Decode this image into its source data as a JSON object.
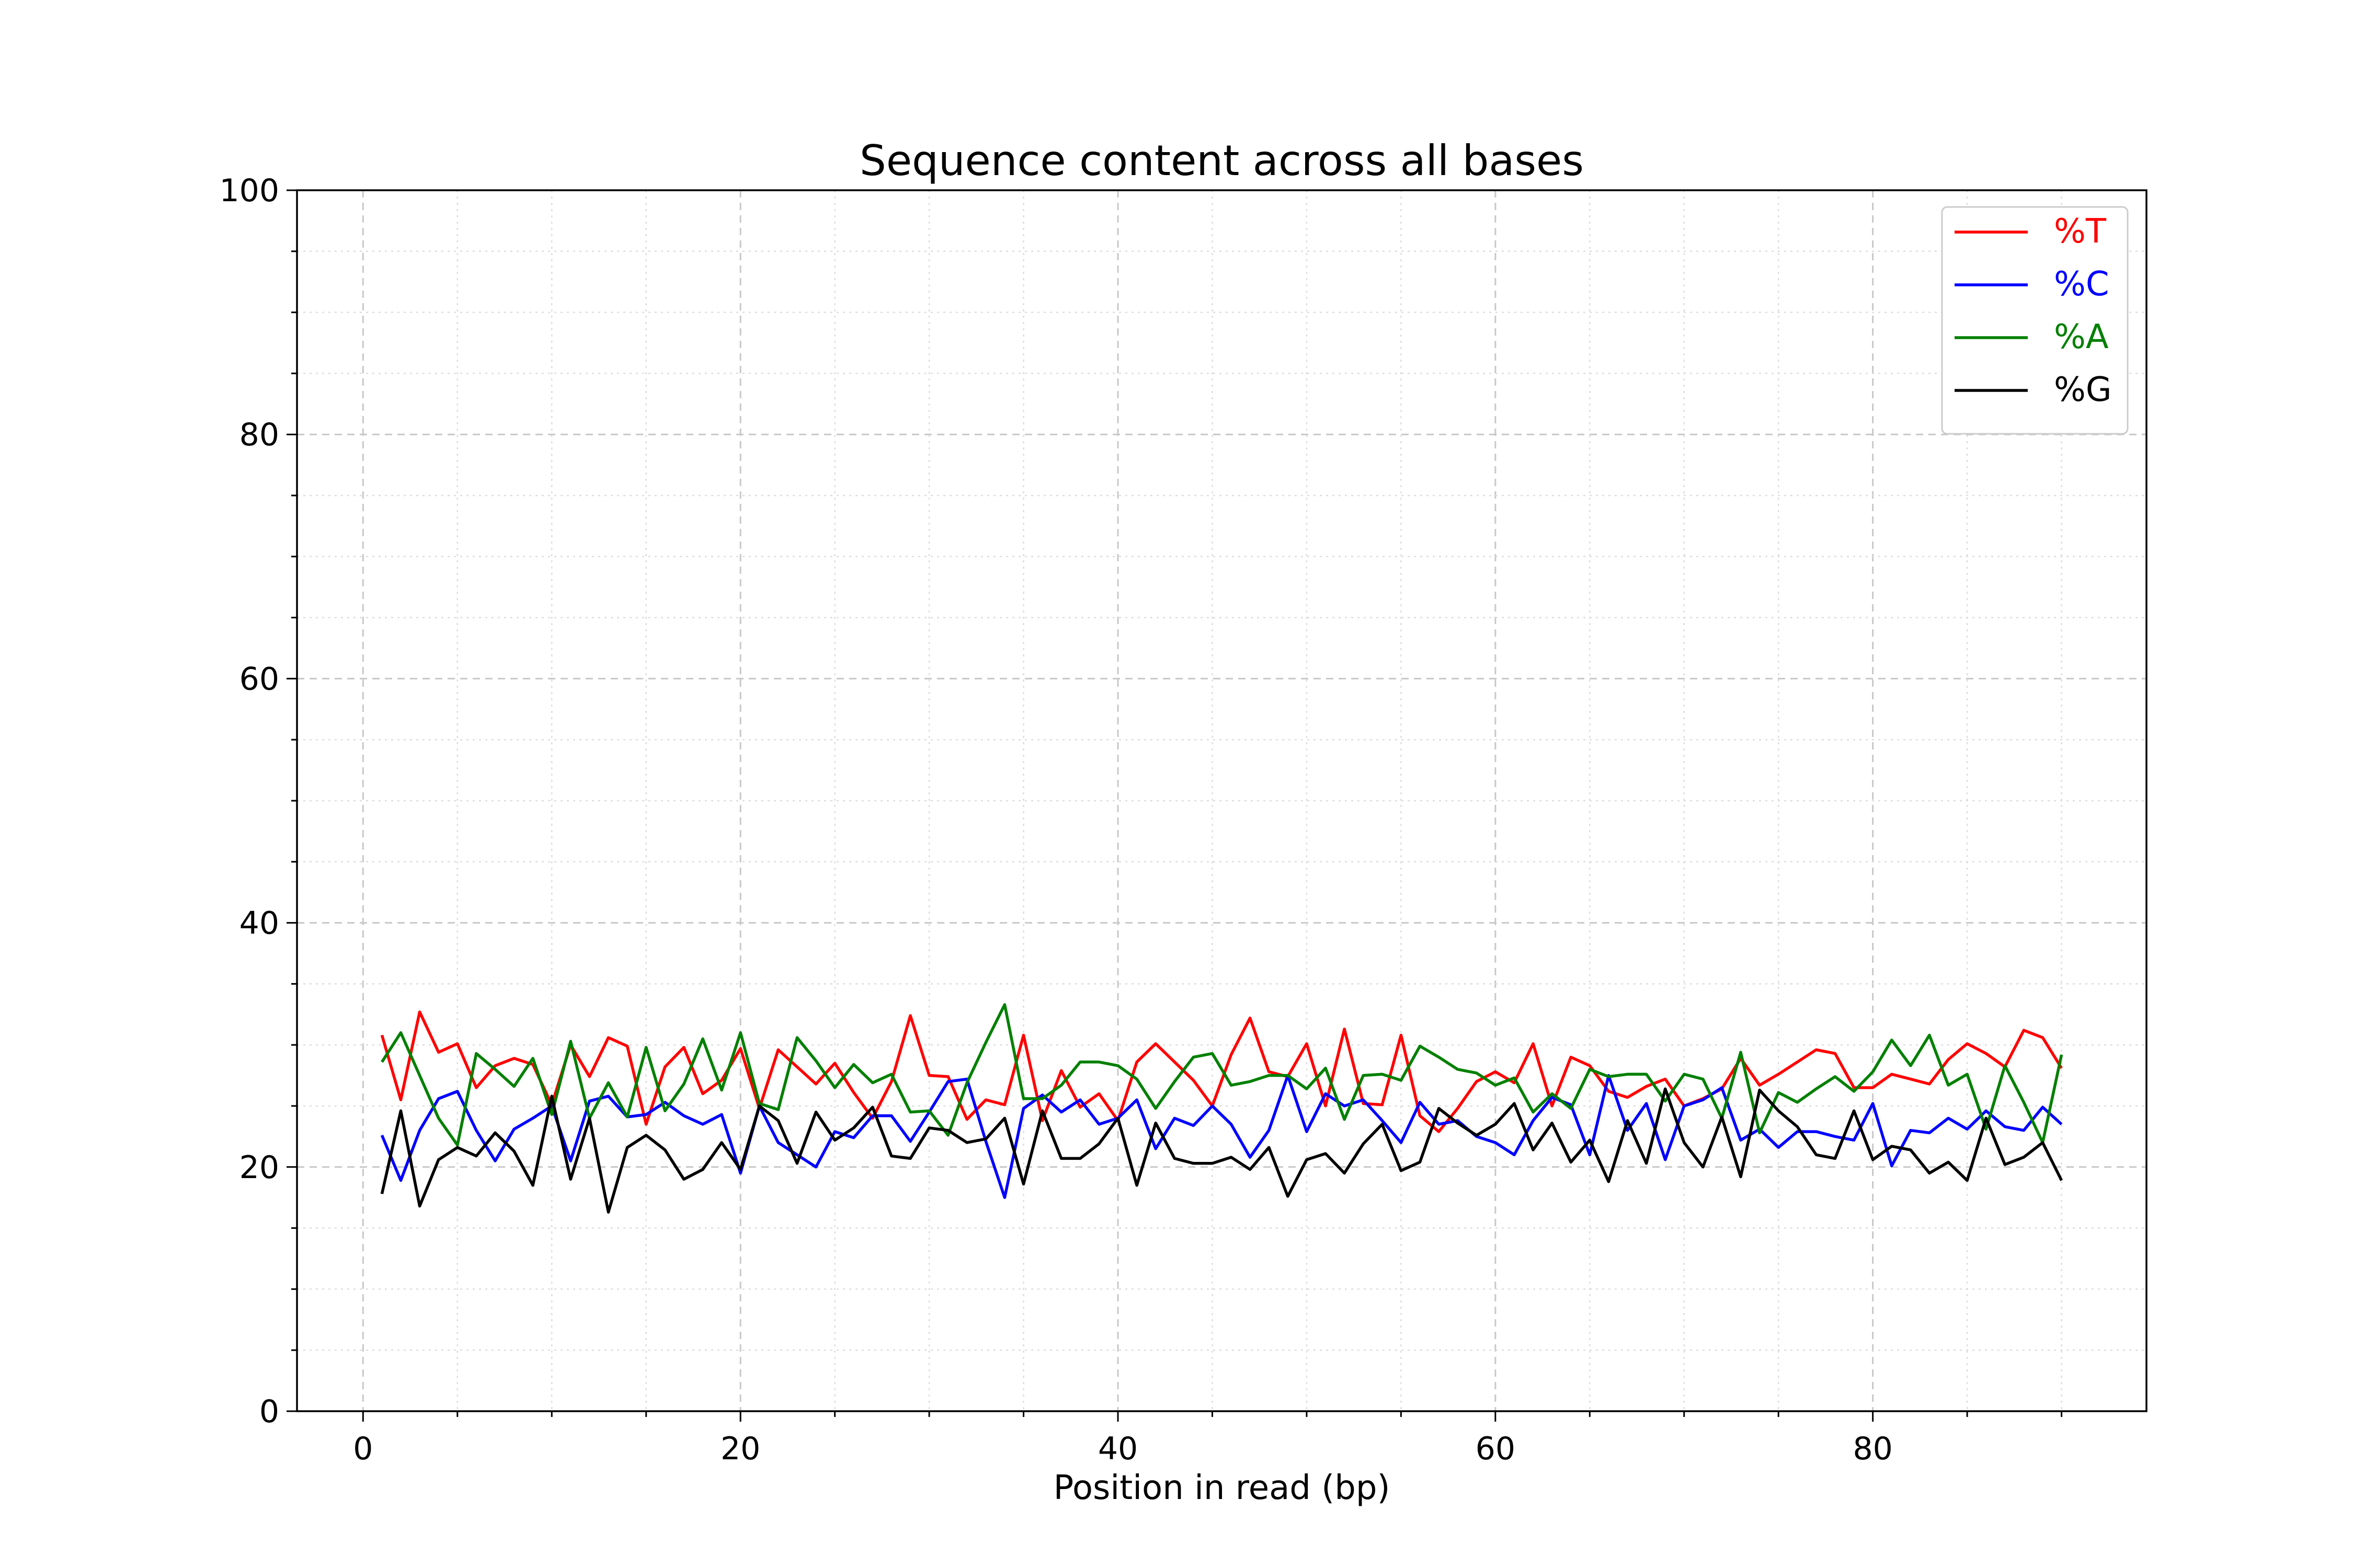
{
  "chart_data": {
    "type": "line",
    "title": "Sequence content across all bases",
    "xlabel": "Position in read (bp)",
    "ylabel": "",
    "xlim": [
      -3.5,
      94.5
    ],
    "ylim": [
      0,
      100
    ],
    "xticks": [
      0,
      20,
      40,
      60,
      80
    ],
    "yticks": [
      0,
      20,
      40,
      60,
      80,
      100
    ],
    "x_minor_step": 5,
    "y_minor_step": 5,
    "grid": true,
    "legend_position": "top-right",
    "x": [
      1,
      2,
      3,
      4,
      5,
      6,
      7,
      8,
      9,
      10,
      11,
      12,
      13,
      14,
      15,
      16,
      17,
      18,
      19,
      20,
      21,
      22,
      23,
      24,
      25,
      26,
      27,
      28,
      29,
      30,
      31,
      32,
      33,
      34,
      35,
      36,
      37,
      38,
      39,
      40,
      41,
      42,
      43,
      44,
      45,
      46,
      47,
      48,
      49,
      50,
      51,
      52,
      53,
      54,
      55,
      56,
      57,
      58,
      59,
      60,
      61,
      62,
      63,
      64,
      65,
      66,
      67,
      68,
      69,
      70,
      71,
      72,
      73,
      74,
      75,
      76,
      77,
      78,
      79,
      80,
      81,
      82,
      83,
      84,
      85,
      86,
      87,
      88,
      89,
      90
    ],
    "series": [
      {
        "name": "%T",
        "color": "#ff0000",
        "values": [
          30.8,
          25.5,
          32.7,
          29.4,
          30.1,
          26.5,
          28.3,
          28.9,
          28.4,
          25.1,
          30.0,
          27.4,
          30.6,
          29.9,
          23.5,
          28.2,
          29.8,
          26.0,
          27.1,
          29.7,
          24.8,
          29.6,
          28.2,
          26.8,
          28.5,
          26.1,
          24.0,
          27.0,
          32.4,
          27.5,
          27.4,
          23.9,
          25.5,
          25.1,
          30.8,
          23.8,
          27.9,
          24.9,
          26.0,
          23.8,
          28.6,
          30.1,
          28.6,
          27.1,
          25.0,
          29.2,
          32.2,
          27.8,
          27.4,
          30.1,
          25.0,
          31.3,
          25.2,
          25.1,
          30.8,
          24.2,
          22.9,
          24.8,
          27.0,
          27.8,
          26.9,
          30.1,
          25.0,
          29.0,
          28.3,
          26.2,
          25.7,
          26.6,
          27.2,
          25.0,
          25.6,
          26.4,
          28.9,
          26.7,
          27.6,
          28.6,
          29.6,
          29.3,
          26.5,
          26.5,
          27.6,
          27.2,
          26.8,
          28.8,
          30.1,
          29.3,
          28.2,
          31.2,
          30.6,
          28.1
        ]
      },
      {
        "name": "%C",
        "color": "#0000ff",
        "values": [
          22.6,
          18.9,
          23.0,
          25.6,
          26.2,
          23.0,
          20.5,
          23.1,
          24.0,
          25.0,
          20.5,
          25.4,
          25.8,
          24.1,
          24.3,
          25.3,
          24.2,
          23.5,
          24.3,
          19.5,
          25.0,
          22.0,
          21.0,
          20.0,
          22.9,
          22.4,
          24.2,
          24.2,
          22.1,
          24.5,
          27.0,
          27.2,
          22.1,
          17.5,
          24.8,
          25.9,
          24.5,
          25.5,
          23.5,
          24.0,
          25.5,
          21.5,
          24.0,
          23.4,
          25.0,
          23.5,
          20.8,
          23.0,
          27.5,
          22.9,
          26.0,
          25.0,
          25.5,
          23.8,
          22.0,
          25.3,
          23.5,
          23.8,
          22.5,
          22.0,
          21.0,
          23.8,
          25.7,
          25.1,
          21.0,
          27.5,
          23.0,
          25.2,
          20.6,
          25.0,
          25.5,
          26.5,
          22.2,
          23.1,
          21.6,
          22.9,
          22.9,
          22.5,
          22.2,
          25.2,
          20.1,
          23.0,
          22.8,
          24.0,
          23.1,
          24.6,
          23.3,
          23.0,
          24.9,
          23.5
        ]
      },
      {
        "name": "%A",
        "color": "#008000",
        "values": [
          28.6,
          31.0,
          27.5,
          24.0,
          21.8,
          29.3,
          28.0,
          26.6,
          28.9,
          24.3,
          30.3,
          24.0,
          26.9,
          24.1,
          29.8,
          24.6,
          26.8,
          30.5,
          26.3,
          31.0,
          25.2,
          24.7,
          30.6,
          28.7,
          26.5,
          28.4,
          26.9,
          27.6,
          24.5,
          24.6,
          22.6,
          26.9,
          30.2,
          33.3,
          25.6,
          25.6,
          26.7,
          28.6,
          28.6,
          28.3,
          27.2,
          24.8,
          27.0,
          29.0,
          29.3,
          26.7,
          27.0,
          27.5,
          27.5,
          26.4,
          28.1,
          23.9,
          27.5,
          27.6,
          27.1,
          29.9,
          29.0,
          28.0,
          27.7,
          26.7,
          27.3,
          24.5,
          26.0,
          24.8,
          28.0,
          27.4,
          27.6,
          27.6,
          25.4,
          27.6,
          27.2,
          24.0,
          29.4,
          22.8,
          26.1,
          25.3,
          26.4,
          27.4,
          26.2,
          27.8,
          30.4,
          28.3,
          30.8,
          26.7,
          27.6,
          23.1,
          28.3,
          25.3,
          22.0,
          29.2
        ]
      },
      {
        "name": "%G",
        "color": "#000000",
        "values": [
          17.8,
          24.6,
          16.8,
          20.6,
          21.6,
          20.9,
          22.8,
          21.3,
          18.5,
          25.8,
          19.0,
          24.0,
          16.3,
          21.6,
          22.6,
          21.4,
          19.0,
          19.8,
          22.0,
          19.8,
          25.0,
          23.8,
          20.3,
          24.5,
          22.2,
          23.2,
          24.9,
          20.9,
          20.7,
          23.2,
          23.0,
          22.0,
          22.3,
          24.0,
          18.6,
          24.6,
          20.7,
          20.7,
          21.9,
          24.0,
          18.5,
          23.6,
          20.7,
          20.3,
          20.3,
          20.8,
          19.8,
          21.6,
          17.6,
          20.6,
          21.1,
          19.5,
          21.9,
          23.5,
          19.7,
          20.4,
          24.8,
          23.6,
          22.6,
          23.5,
          25.2,
          21.4,
          23.6,
          20.4,
          22.2,
          18.8,
          23.8,
          20.3,
          26.4,
          22.0,
          20.0,
          24.1,
          19.2,
          26.3,
          24.6,
          23.3,
          21.0,
          20.7,
          24.6,
          20.6,
          21.7,
          21.4,
          19.5,
          20.4,
          18.9,
          24.0,
          20.2,
          20.8,
          22.0,
          18.9
        ]
      }
    ]
  }
}
